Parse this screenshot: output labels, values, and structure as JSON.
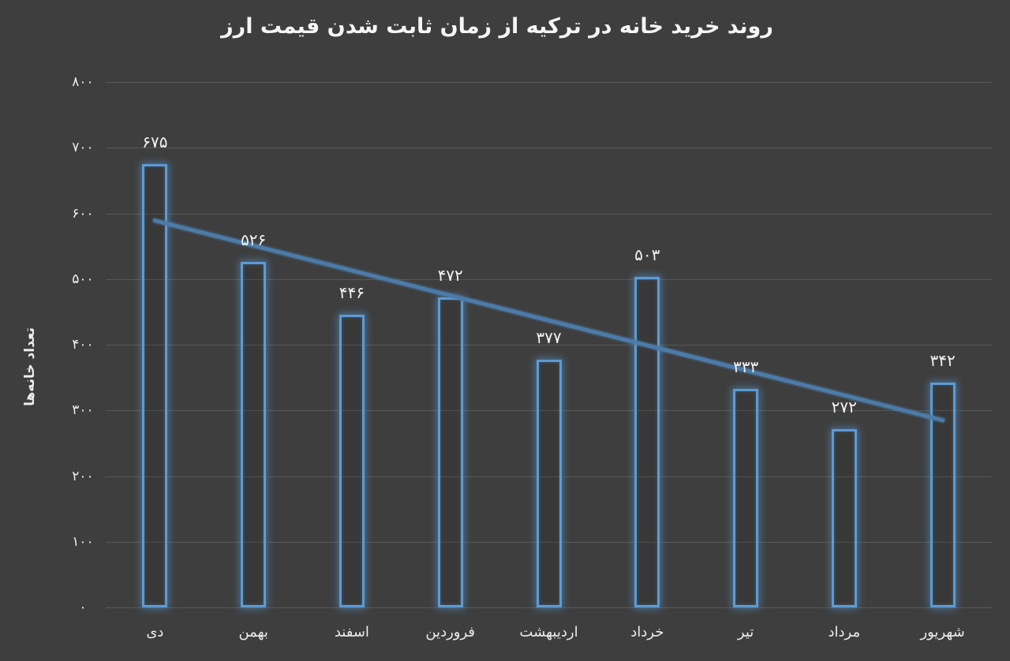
{
  "chart_data": {
    "type": "bar",
    "title": "روند خرید خانه در ترکیه از زمان ثابت شدن قیمت ارز",
    "ylabel": "تعداد خانه‌ها",
    "xlabel": "",
    "categories": [
      "دی",
      "بهمن",
      "اسفند",
      "فروردین",
      "اردیبهشت",
      "خرداد",
      "تیر",
      "مرداد",
      "شهریور"
    ],
    "values": [
      675,
      526,
      446,
      472,
      377,
      503,
      333,
      272,
      342
    ],
    "value_labels": [
      "۶۷۵",
      "۵۲۶",
      "۴۴۶",
      "۴۷۲",
      "۳۷۷",
      "۵۰۳",
      "۳۳۳",
      "۲۷۲",
      "۳۴۲"
    ],
    "ylim": [
      0,
      800
    ],
    "ytick_values": [
      800,
      700,
      600,
      500,
      400,
      300,
      200,
      100,
      0
    ],
    "ytick_labels": [
      "۸۰۰",
      "۷۰۰",
      "۶۰۰",
      "۵۰۰",
      "۴۰۰",
      "۳۰۰",
      "۲۰۰",
      "۱۰۰",
      "۰"
    ],
    "grid": true,
    "legend": false,
    "rtl": true,
    "trendline": {
      "type": "linear",
      "start_value": 589,
      "end_value": 285
    },
    "colors": {
      "background": "#3E3E3E",
      "bar_stroke": "#5B9BD5",
      "bar_glow": "rgba(91,160,225,0.5)",
      "trendline": "#4C7BA8",
      "gridline": "#585858",
      "text": "#F0F0F0"
    }
  }
}
